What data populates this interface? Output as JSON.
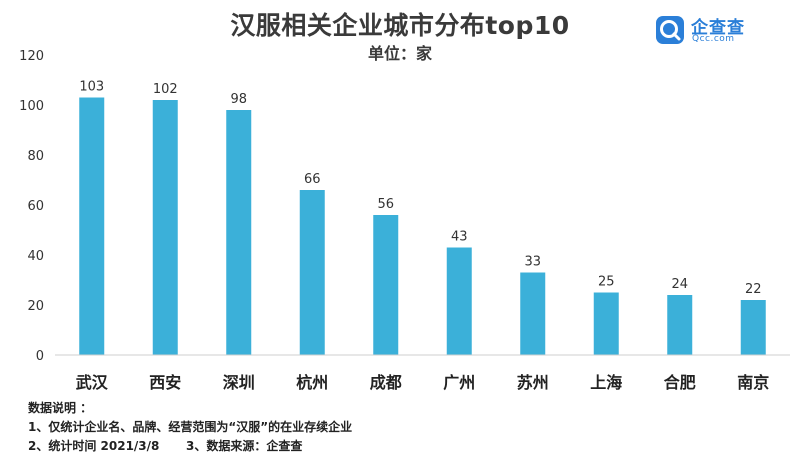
{
  "chart_data": {
    "type": "bar",
    "title": "汉服相关企业城市分布top10",
    "subtitle": "单位：家",
    "categories": [
      "武汉",
      "西安",
      "深圳",
      "杭州",
      "成都",
      "广州",
      "苏州",
      "上海",
      "合肥",
      "南京"
    ],
    "values": [
      103,
      102,
      98,
      66,
      56,
      43,
      33,
      25,
      24,
      22
    ],
    "ylim": [
      0,
      120
    ],
    "yticks": [
      0,
      20,
      40,
      60,
      80,
      100,
      120
    ],
    "grid": false,
    "bar_color": "#3BB0D9"
  },
  "logo": {
    "brand": "企查查",
    "domain": "Qcc.com",
    "color": "#2b7fd8"
  },
  "notes": {
    "heading": "数据说明 ：",
    "line1": "1、仅统计企业名、品牌、经营范围为“汉服”的在业存续企业",
    "line2": "2、统计时间 2021/3/8",
    "line3": "3、数据来源：企查查"
  }
}
